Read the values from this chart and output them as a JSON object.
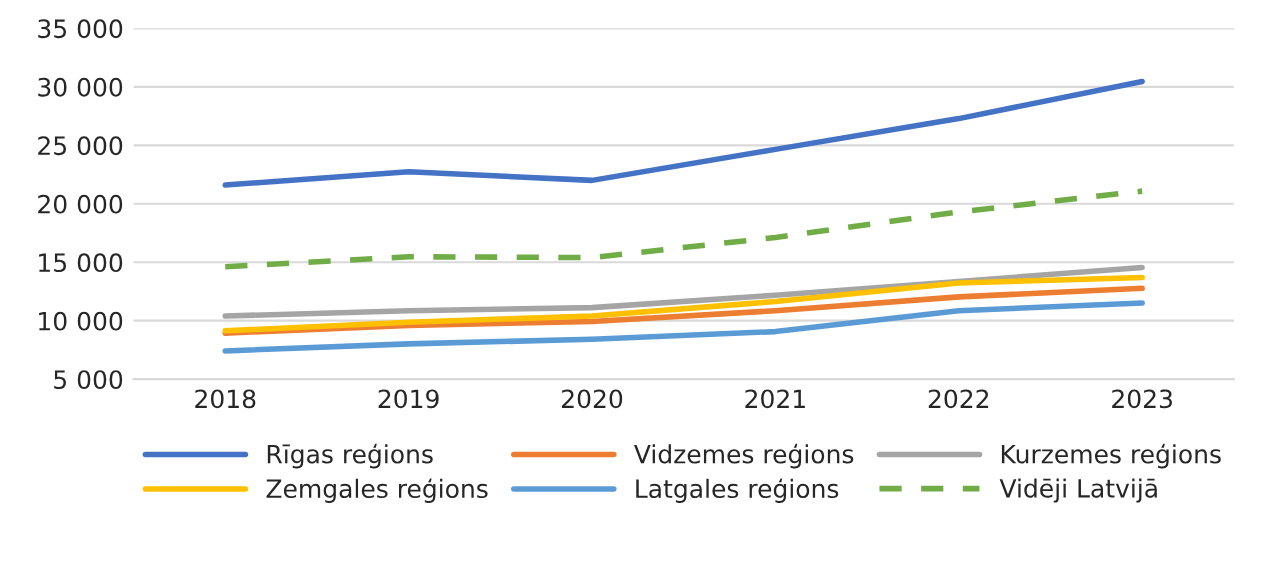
{
  "chart_data": {
    "type": "line",
    "categories": [
      "2018",
      "2019",
      "2020",
      "2021",
      "2022",
      "2023"
    ],
    "series": [
      {
        "name": "Rīgas reģions",
        "color": "#4472c4",
        "values": [
          21600,
          22730,
          22000,
          24650,
          27280,
          30450
        ]
      },
      {
        "name": "Vidzemes reģions",
        "color": "#ed7d31",
        "values": [
          8940,
          9600,
          9930,
          10860,
          12040,
          12770
        ]
      },
      {
        "name": "Kurzemes reģions",
        "color": "#a5a5a5",
        "values": [
          10400,
          10860,
          11120,
          12180,
          13360,
          14550
        ]
      },
      {
        "name": "Zemgales reģions",
        "color": "#ffc000",
        "values": [
          9140,
          9870,
          10400,
          11650,
          13230,
          13700
        ]
      },
      {
        "name": "Latgales reģions",
        "color": "#5b9bd5",
        "values": [
          7420,
          8020,
          8420,
          9070,
          10860,
          11520
        ]
      },
      {
        "name": "Vidēji Latvijā",
        "color": "#70ad47",
        "values": [
          14620,
          15470,
          15400,
          17120,
          19300,
          21080
        ],
        "line_style": "dashed"
      }
    ],
    "ylim": [
      5000,
      35000
    ],
    "yticks": [
      {
        "value": 5000,
        "label": "5 000"
      },
      {
        "value": 10000,
        "label": "10 000"
      },
      {
        "value": 15000,
        "label": "15 000"
      },
      {
        "value": 20000,
        "label": "20 000"
      },
      {
        "value": 25000,
        "label": "25 000"
      },
      {
        "value": 30000,
        "label": "30 000"
      },
      {
        "value": 35000,
        "label": "35 000"
      }
    ],
    "grid": "y",
    "legend": "bottom",
    "line_style": "solid"
  }
}
